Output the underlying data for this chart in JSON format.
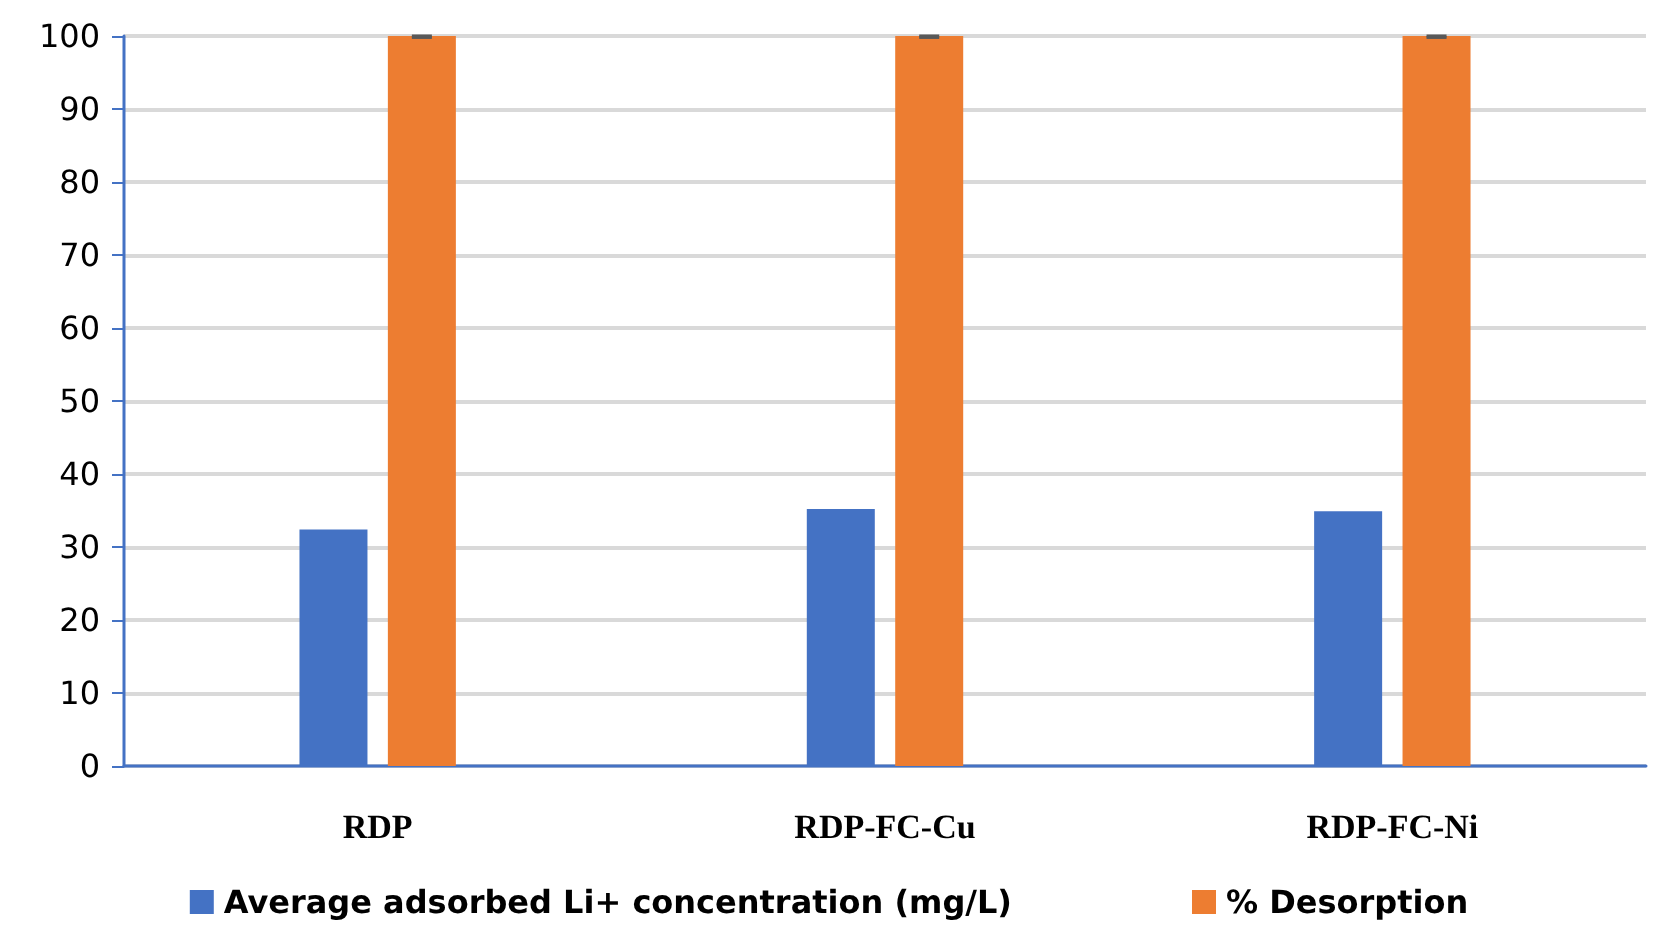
{
  "chart_data": {
    "type": "bar",
    "categories": [
      "RDP",
      "RDP-FC-Cu",
      "RDP-FC-Ni"
    ],
    "series": [
      {
        "name": "Average adsorbed Li+ concentration (mg/L)",
        "color": "#4472c4",
        "values": [
          32.4,
          35.2,
          34.9
        ]
      },
      {
        "name": "% Desorption",
        "color": "#ed7d31",
        "values": [
          100,
          100,
          100
        ],
        "errors": [
          [
            99.8,
            100
          ],
          [
            99.8,
            100
          ],
          [
            99.8,
            100
          ]
        ]
      }
    ],
    "ylim": [
      0,
      100
    ],
    "yticks": [
      0,
      10,
      20,
      30,
      40,
      50,
      60,
      70,
      80,
      90,
      100
    ],
    "grid": "y",
    "legend": "bottom"
  }
}
